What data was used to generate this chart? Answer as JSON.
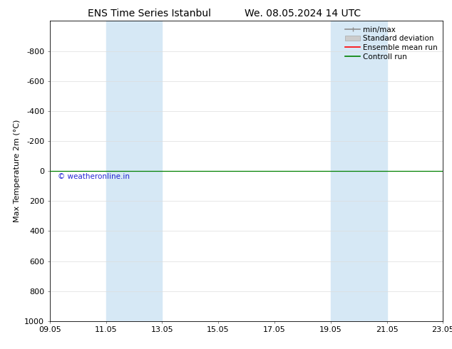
{
  "title_left": "ENS Time Series Istanbul",
  "title_right": "We. 08.05.2024 14 UTC",
  "ylabel": "Max Temperature 2m (°C)",
  "watermark": "© weatheronline.in",
  "ylim_bottom": 1000,
  "ylim_top": -1000,
  "yticks": [
    -800,
    -600,
    -400,
    -200,
    0,
    200,
    400,
    600,
    800,
    1000
  ],
  "x_tick_labels": [
    "09.05",
    "11.05",
    "13.05",
    "15.05",
    "17.05",
    "19.05",
    "21.05",
    "23.05"
  ],
  "x_tick_positions_days": [
    0,
    2,
    4,
    6,
    8,
    10,
    12,
    14
  ],
  "shaded_columns": [
    {
      "start_day": 2,
      "end_day": 4
    },
    {
      "start_day": 10,
      "end_day": 12
    }
  ],
  "shaded_color": "#d6e8f5",
  "control_run_y": 0,
  "control_run_color": "#008000",
  "ensemble_mean_color": "#ff0000",
  "minmax_color": "#909090",
  "stddev_color": "#cccccc",
  "legend_entries": [
    "min/max",
    "Standard deviation",
    "Ensemble mean run",
    "Controll run"
  ],
  "legend_colors": [
    "#909090",
    "#cccccc",
    "#ff0000",
    "#008000"
  ],
  "background_color": "#ffffff",
  "font_size_title": 10,
  "font_size_axis": 8,
  "font_size_legend": 7.5,
  "grid_color": "#dddddd",
  "tick_color": "#555555"
}
